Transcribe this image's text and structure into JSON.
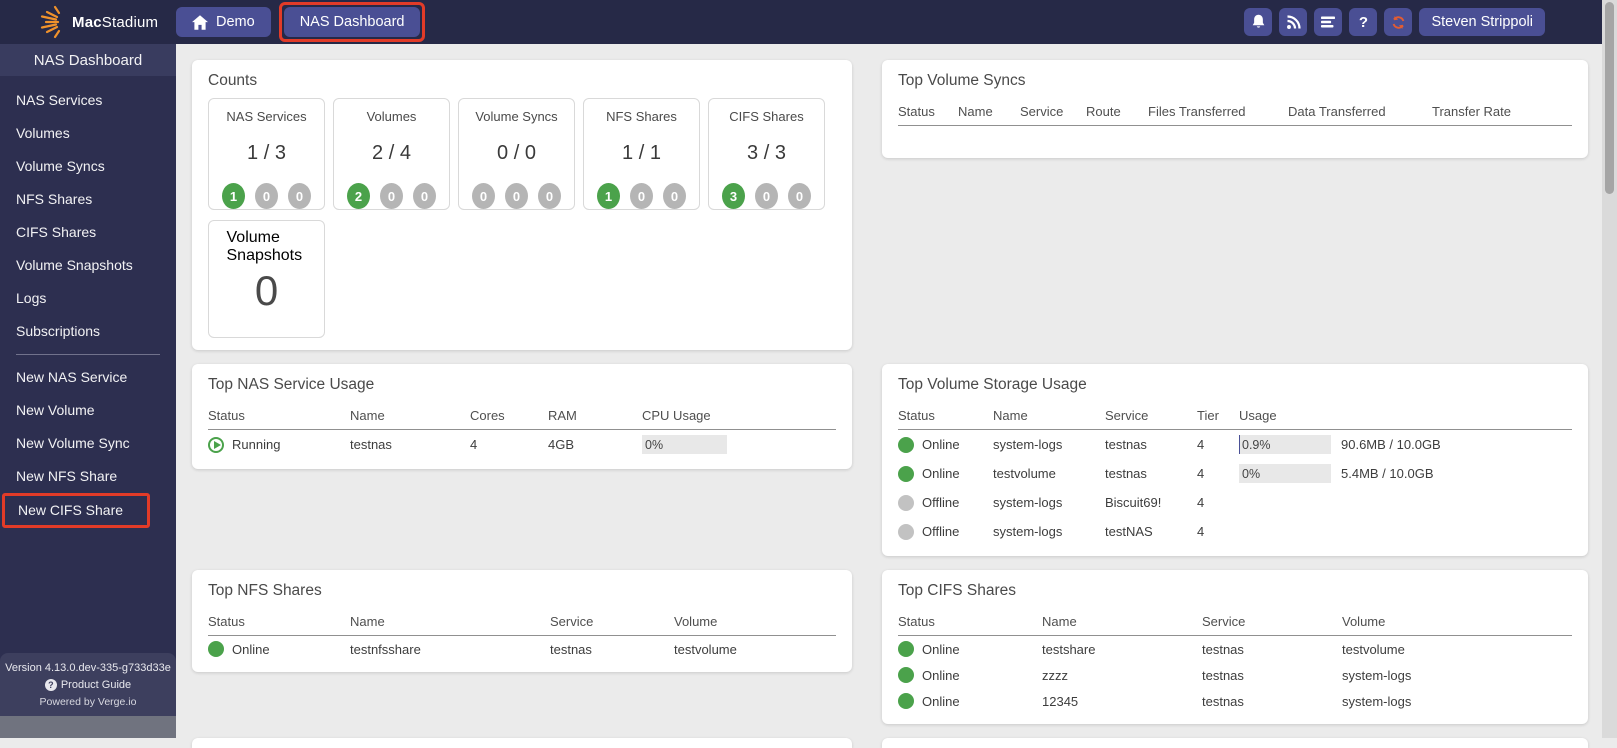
{
  "navbar": {
    "brand_bold": "Mac",
    "brand_rest": "Stadium",
    "demo_label": "Demo",
    "dashboard_label": "NAS Dashboard",
    "user": "Steven Strippoli",
    "icons": [
      "bell-icon",
      "rss-icon",
      "servers-icon",
      "help-icon",
      "refresh-icon"
    ],
    "help_glyph": "?"
  },
  "sidebar": {
    "title": "NAS Dashboard",
    "items": [
      {
        "label": "NAS Services"
      },
      {
        "label": "Volumes"
      },
      {
        "label": "Volume Syncs"
      },
      {
        "label": "NFS Shares"
      },
      {
        "label": "CIFS Shares"
      },
      {
        "label": "Volume Snapshots"
      },
      {
        "label": "Logs"
      },
      {
        "label": "Subscriptions"
      }
    ],
    "actions": [
      {
        "label": "New NAS Service"
      },
      {
        "label": "New Volume"
      },
      {
        "label": "New Volume Sync"
      },
      {
        "label": "New NFS Share"
      },
      {
        "label": "New CIFS Share",
        "hl": "true"
      }
    ],
    "footer": {
      "version": "Version 4.13.0.dev-335-g733d33e",
      "product_guide": "Product Guide",
      "powered_by": "Powered by Verge.io"
    }
  },
  "counts": {
    "title": "Counts",
    "cards": [
      {
        "label": "NAS Services",
        "value": "1 / 3",
        "b1": "1",
        "c1": "green",
        "b2": "0",
        "c2": "gray",
        "b3": "0",
        "c3": "gray"
      },
      {
        "label": "Volumes",
        "value": "2 / 4",
        "b1": "2",
        "c1": "green",
        "b2": "0",
        "c2": "gray",
        "b3": "0",
        "c3": "gray"
      },
      {
        "label": "Volume Syncs",
        "value": "0 / 0",
        "b1": "0",
        "c1": "gray",
        "b2": "0",
        "c2": "gray",
        "b3": "0",
        "c3": "gray"
      },
      {
        "label": "NFS Shares",
        "value": "1 / 1",
        "b1": "1",
        "c1": "green",
        "b2": "0",
        "c2": "gray",
        "b3": "0",
        "c3": "gray"
      },
      {
        "label": "CIFS Shares",
        "value": "3 / 3",
        "b1": "3",
        "c1": "green",
        "b2": "0",
        "c2": "gray",
        "b3": "0",
        "c3": "gray"
      }
    ],
    "snapshot_card": {
      "label": "Volume Snapshots",
      "value": "0"
    }
  },
  "panels": {
    "volume_syncs": {
      "title": "Top Volume Syncs",
      "columns": [
        {
          "label": "Status"
        },
        {
          "label": "Name"
        },
        {
          "label": "Service"
        },
        {
          "label": "Route"
        },
        {
          "label": "Files Transferred"
        },
        {
          "label": "Data Transferred"
        },
        {
          "label": "Transfer Rate"
        }
      ],
      "rows": []
    },
    "nas_service_usage": {
      "title": "Top NAS Service Usage",
      "columns": [
        {
          "label": "Status"
        },
        {
          "label": "Name"
        },
        {
          "label": "Cores"
        },
        {
          "label": "RAM"
        },
        {
          "label": "CPU Usage"
        }
      ],
      "rows": [
        {
          "state": "running",
          "status": "Running",
          "name": "testnas",
          "cores": "4",
          "ram": "4GB",
          "cpu_pct": "0%",
          "fill": "0",
          "has": "yes"
        }
      ]
    },
    "volume_storage": {
      "title": "Top Volume Storage Usage",
      "columns": [
        {
          "label": "Status"
        },
        {
          "label": "Name"
        },
        {
          "label": "Service"
        },
        {
          "label": "Tier"
        },
        {
          "label": "Usage"
        }
      ],
      "rows": [
        {
          "state": "online",
          "status": "Online",
          "name": "system-logs",
          "service": "testnas",
          "tier": "4",
          "usage_pct": "0.9%",
          "fill": "0.9",
          "usage_text": "90.6MB / 10.0GB",
          "has": "yes"
        },
        {
          "state": "online",
          "status": "Online",
          "name": "testvolume",
          "service": "testnas",
          "tier": "4",
          "usage_pct": "0%",
          "fill": "0",
          "usage_text": "5.4MB / 10.0GB",
          "has": "yes"
        },
        {
          "state": "offline",
          "status": "Offline",
          "name": "system-logs",
          "service": "Biscuit69!",
          "tier": "4",
          "usage_pct": "",
          "fill": "0",
          "usage_text": "",
          "has": "no"
        },
        {
          "state": "offline",
          "status": "Offline",
          "name": "system-logs",
          "service": "testNAS",
          "tier": "4",
          "usage_pct": "",
          "fill": "0",
          "usage_text": "",
          "has": "no"
        }
      ]
    },
    "nfs_shares": {
      "title": "Top NFS Shares",
      "columns": [
        {
          "label": "Status"
        },
        {
          "label": "Name"
        },
        {
          "label": "Service"
        },
        {
          "label": "Volume"
        }
      ],
      "rows": [
        {
          "state": "online",
          "status": "Online",
          "name": "testnfsshare",
          "service": "testnas",
          "volume": "testvolume"
        }
      ]
    },
    "cifs_shares": {
      "title": "Top CIFS Shares",
      "columns": [
        {
          "label": "Status"
        },
        {
          "label": "Name"
        },
        {
          "label": "Service"
        },
        {
          "label": "Volume"
        }
      ],
      "rows": [
        {
          "state": "online",
          "status": "Online",
          "name": "testshare",
          "service": "testnas",
          "volume": "testvolume"
        },
        {
          "state": "online",
          "status": "Online",
          "name": "zzzz",
          "service": "testnas",
          "volume": "system-logs"
        },
        {
          "state": "online",
          "status": "Online",
          "name": "12345",
          "service": "testnas",
          "volume": "system-logs"
        }
      ]
    }
  },
  "colors": {
    "navbar_bg": "#262947",
    "button_indigo": "#4a4f94",
    "sidebar_bg": "#2d2f50",
    "annotation_red": "#e23b28",
    "status_green": "#4ba24b",
    "status_gray": "#c2c2c2",
    "logo_orange": "#f0922b",
    "refresh_orange": "#e25c33"
  }
}
